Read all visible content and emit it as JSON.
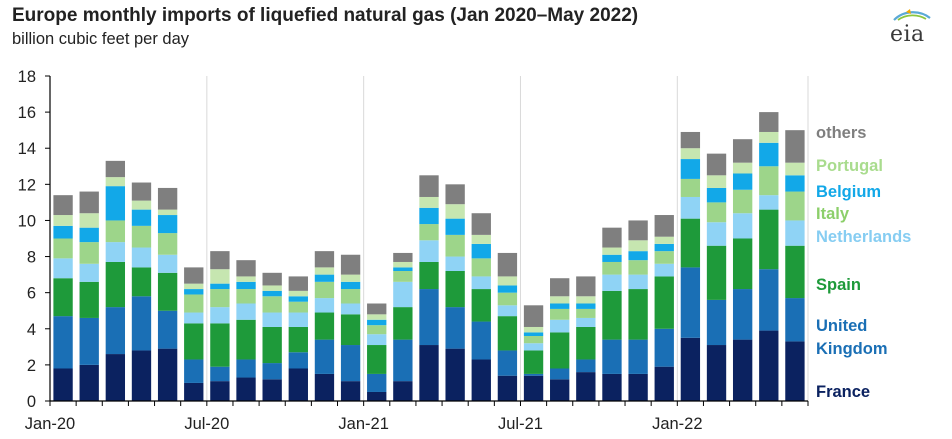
{
  "header": {
    "title": "Europe monthly imports of liquefied natural gas (Jan 2020–May 2022)",
    "subtitle": "billion cubic feet per day",
    "logo_text": "eia"
  },
  "chart_data": {
    "type": "bar",
    "stacked": true,
    "title": "Europe monthly imports of liquefied natural gas (Jan 2020–May 2022)",
    "subtitle": "billion cubic feet per day",
    "ylabel": "",
    "xlabel": "",
    "ylim": [
      0,
      18
    ],
    "yticks": [
      0,
      2,
      4,
      6,
      8,
      10,
      12,
      14,
      16,
      18
    ],
    "categories": [
      "Jan-20",
      "Feb-20",
      "Mar-20",
      "Apr-20",
      "May-20",
      "Jun-20",
      "Jul-20",
      "Aug-20",
      "Sep-20",
      "Oct-20",
      "Nov-20",
      "Dec-20",
      "Jan-21",
      "Feb-21",
      "Mar-21",
      "Apr-21",
      "May-21",
      "Jun-21",
      "Jul-21",
      "Aug-21",
      "Sep-21",
      "Oct-21",
      "Nov-21",
      "Dec-21",
      "Jan-22",
      "Feb-22",
      "Mar-22",
      "Apr-22",
      "May-22"
    ],
    "x_tick_labels": [
      {
        "index": 0,
        "label": "Jan-20"
      },
      {
        "index": 6,
        "label": "Jul-20"
      },
      {
        "index": 12,
        "label": "Jan-21"
      },
      {
        "index": 18,
        "label": "Jul-21"
      },
      {
        "index": 24,
        "label": "Jan-22"
      }
    ],
    "series": [
      {
        "name": "France",
        "color": "#0b2260",
        "values": [
          1.8,
          2.0,
          2.6,
          2.8,
          2.9,
          1.0,
          1.1,
          1.3,
          1.2,
          1.8,
          1.5,
          1.1,
          0.5,
          1.1,
          3.1,
          2.9,
          2.3,
          1.4,
          1.4,
          1.2,
          1.6,
          1.5,
          1.5,
          1.9,
          3.5,
          3.1,
          3.4,
          3.9,
          3.3
        ]
      },
      {
        "name": "United Kingdom",
        "color": "#1a6fb5",
        "values": [
          2.9,
          2.6,
          2.6,
          3.0,
          2.1,
          1.3,
          0.8,
          1.0,
          0.9,
          0.9,
          1.9,
          2.0,
          1.0,
          2.3,
          3.1,
          2.3,
          2.1,
          1.4,
          0.1,
          0.6,
          0.7,
          1.9,
          1.9,
          2.1,
          3.9,
          2.5,
          2.8,
          3.4,
          2.4
        ]
      },
      {
        "name": "Spain",
        "color": "#1e9a3a",
        "values": [
          2.1,
          2.0,
          2.5,
          1.6,
          2.1,
          2.0,
          2.4,
          2.2,
          2.0,
          1.4,
          1.5,
          1.7,
          1.6,
          1.8,
          1.5,
          2.0,
          1.8,
          1.9,
          1.3,
          2.0,
          1.8,
          2.7,
          2.8,
          2.9,
          2.7,
          3.0,
          2.8,
          3.3,
          2.9
        ]
      },
      {
        "name": "Netherlands",
        "color": "#8fd3f5",
        "values": [
          1.1,
          1.0,
          1.1,
          1.1,
          1.0,
          0.6,
          0.9,
          0.9,
          0.8,
          0.8,
          0.8,
          0.6,
          0.6,
          1.4,
          1.2,
          0.8,
          0.7,
          0.6,
          0.4,
          0.7,
          0.5,
          0.9,
          0.8,
          0.7,
          1.2,
          1.3,
          1.4,
          0.8,
          1.4
        ]
      },
      {
        "name": "Italy",
        "color": "#9dd58a",
        "values": [
          1.1,
          1.2,
          1.2,
          1.2,
          1.2,
          1.0,
          1.0,
          0.8,
          0.9,
          0.6,
          0.9,
          0.8,
          0.5,
          0.6,
          0.9,
          1.2,
          1.0,
          0.7,
          0.4,
          0.6,
          0.5,
          0.7,
          0.8,
          0.7,
          1.0,
          1.1,
          1.3,
          1.6,
          1.6
        ]
      },
      {
        "name": "Belgium",
        "color": "#12a8e8",
        "values": [
          0.7,
          0.8,
          1.9,
          0.9,
          1.0,
          0.3,
          0.3,
          0.4,
          0.3,
          0.3,
          0.4,
          0.4,
          0.3,
          0.2,
          0.9,
          0.9,
          0.8,
          0.4,
          0.2,
          0.3,
          0.3,
          0.4,
          0.5,
          0.4,
          1.1,
          0.8,
          0.9,
          1.3,
          0.9
        ]
      },
      {
        "name": "Portugal",
        "color": "#c6e6b0",
        "values": [
          0.6,
          0.8,
          0.5,
          0.5,
          0.3,
          0.3,
          0.8,
          0.3,
          0.3,
          0.3,
          0.4,
          0.4,
          0.3,
          0.3,
          0.6,
          0.8,
          0.5,
          0.5,
          0.3,
          0.4,
          0.4,
          0.4,
          0.6,
          0.4,
          0.6,
          0.7,
          0.6,
          0.6,
          0.7
        ]
      },
      {
        "name": "others",
        "color": "#7f7f7f",
        "values": [
          1.1,
          1.2,
          0.9,
          1.0,
          1.2,
          0.9,
          1.0,
          0.9,
          0.7,
          0.8,
          0.9,
          1.1,
          0.6,
          0.5,
          1.2,
          1.1,
          1.2,
          1.3,
          1.2,
          1.0,
          1.1,
          1.1,
          1.1,
          1.2,
          0.9,
          1.2,
          1.3,
          1.1,
          1.8
        ]
      }
    ],
    "legend": {
      "placement": "right",
      "entries": [
        {
          "lines": [
            "others"
          ],
          "color": "#7f7f7f"
        },
        {
          "lines": [
            "Portugal"
          ],
          "color": "#a9dc8e"
        },
        {
          "lines": [
            "Belgium"
          ],
          "color": "#12a8e8"
        },
        {
          "lines": [
            "Italy"
          ],
          "color": "#8ccf6a"
        },
        {
          "lines": [
            "Netherlands"
          ],
          "color": "#86cdf2"
        },
        {
          "lines": [
            "Spain"
          ],
          "color": "#1e9a3a"
        },
        {
          "lines": [
            "United",
            "Kingdom"
          ],
          "color": "#1a6fb5"
        },
        {
          "lines": [
            "France"
          ],
          "color": "#0b2260"
        }
      ]
    },
    "grid": {
      "horizontal": false,
      "vertical": true
    }
  }
}
